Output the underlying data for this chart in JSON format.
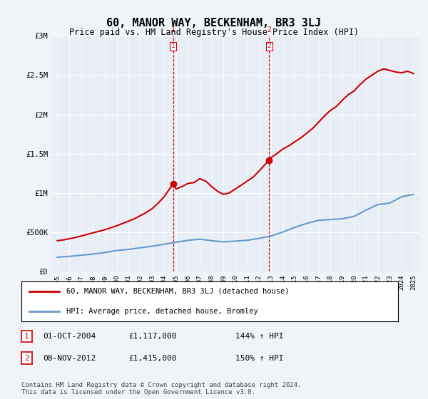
{
  "title": "60, MANOR WAY, BECKENHAM, BR3 3LJ",
  "subtitle": "Price paid vs. HM Land Registry's House Price Index (HPI)",
  "footer1": "Contains HM Land Registry data © Crown copyright and database right 2024.",
  "footer2": "This data is licensed under the Open Government Licence v3.0.",
  "legend_line1": "60, MANOR WAY, BECKENHAM, BR3 3LJ (detached house)",
  "legend_line2": "HPI: Average price, detached house, Bromley",
  "annotation1_label": "1",
  "annotation1_date": "01-OCT-2004",
  "annotation1_price": "£1,117,000",
  "annotation1_hpi": "144% ↑ HPI",
  "annotation2_label": "2",
  "annotation2_date": "08-NOV-2012",
  "annotation2_price": "£1,415,000",
  "annotation2_hpi": "150% ↑ HPI",
  "ylim": [
    0,
    3000000
  ],
  "yticks": [
    0,
    500000,
    1000000,
    1500000,
    2000000,
    2500000,
    3000000
  ],
  "ytick_labels": [
    "£0",
    "£500K",
    "£1M",
    "£1.5M",
    "£2M",
    "£2.5M",
    "£3M"
  ],
  "red_color": "#cc0000",
  "blue_color": "#6699cc",
  "background_color": "#f0f4f8",
  "plot_bg_color": "#ffffff",
  "marker1_x": 2004.75,
  "marker1_y": 1117000,
  "marker2_x": 2012.83,
  "marker2_y": 1415000,
  "vline1_x": 2004.75,
  "vline2_x": 2012.83,
  "hpi_years": [
    1995,
    1996,
    1997,
    1998,
    1999,
    2000,
    2001,
    2002,
    2003,
    2004,
    2005,
    2006,
    2007,
    2008,
    2009,
    2010,
    2011,
    2012,
    2013,
    2014,
    2015,
    2016,
    2017,
    2018,
    2019,
    2020,
    2021,
    2022,
    2023,
    2024,
    2025
  ],
  "hpi_values": [
    180000,
    190000,
    205000,
    220000,
    240000,
    265000,
    280000,
    300000,
    320000,
    345000,
    370000,
    395000,
    410000,
    390000,
    375000,
    385000,
    395000,
    420000,
    450000,
    500000,
    560000,
    610000,
    650000,
    660000,
    670000,
    700000,
    780000,
    850000,
    870000,
    950000,
    980000
  ],
  "red_years": [
    1995.0,
    1995.5,
    1996.0,
    1996.5,
    1997.0,
    1997.5,
    1998.0,
    1998.5,
    1999.0,
    1999.5,
    2000.0,
    2000.5,
    2001.0,
    2001.5,
    2002.0,
    2002.5,
    2003.0,
    2003.5,
    2004.0,
    2004.75,
    2005.0,
    2005.5,
    2006.0,
    2006.5,
    2007.0,
    2007.5,
    2008.0,
    2008.5,
    2009.0,
    2009.5,
    2010.0,
    2010.5,
    2011.0,
    2011.5,
    2012.0,
    2012.83,
    2013.0,
    2013.5,
    2014.0,
    2014.5,
    2015.0,
    2015.5,
    2016.0,
    2016.5,
    2017.0,
    2017.5,
    2018.0,
    2018.5,
    2019.0,
    2019.5,
    2020.0,
    2020.5,
    2021.0,
    2021.5,
    2022.0,
    2022.5,
    2023.0,
    2023.5,
    2024.0,
    2024.5,
    2025.0
  ],
  "red_values": [
    390000,
    400000,
    415000,
    430000,
    450000,
    470000,
    490000,
    510000,
    530000,
    555000,
    580000,
    610000,
    640000,
    670000,
    710000,
    750000,
    800000,
    870000,
    950000,
    1117000,
    1050000,
    1080000,
    1120000,
    1130000,
    1180000,
    1150000,
    1080000,
    1020000,
    980000,
    1000000,
    1050000,
    1100000,
    1150000,
    1200000,
    1280000,
    1415000,
    1450000,
    1500000,
    1560000,
    1600000,
    1650000,
    1700000,
    1760000,
    1820000,
    1900000,
    1980000,
    2050000,
    2100000,
    2180000,
    2250000,
    2300000,
    2380000,
    2450000,
    2500000,
    2550000,
    2580000,
    2560000,
    2540000,
    2530000,
    2550000,
    2520000
  ],
  "xlim": [
    1994.5,
    2025.5
  ],
  "xtick_years": [
    1995,
    1996,
    1997,
    1998,
    1999,
    2000,
    2001,
    2002,
    2003,
    2004,
    2005,
    2006,
    2007,
    2008,
    2009,
    2010,
    2011,
    2012,
    2013,
    2014,
    2015,
    2016,
    2017,
    2018,
    2019,
    2020,
    2021,
    2022,
    2023,
    2024,
    2025
  ]
}
